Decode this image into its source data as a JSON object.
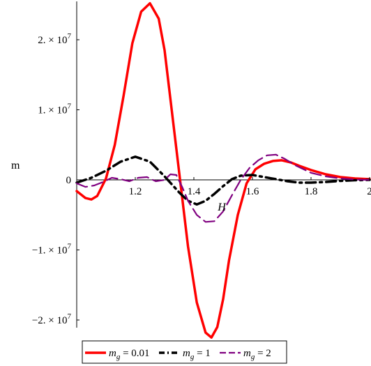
{
  "chart_data": {
    "type": "line",
    "xlabel": "H",
    "ylabel": "m",
    "xlim": [
      1.0,
      2.0
    ],
    "ylim": [
      -22500000,
      25000000
    ],
    "x_ticks": [
      {
        "value": 1.2,
        "label": "1.2"
      },
      {
        "value": 1.4,
        "label": "1.4"
      },
      {
        "value": 1.6,
        "label": "1.6"
      },
      {
        "value": 1.8,
        "label": "1.8"
      },
      {
        "value": 2.0,
        "label": "2"
      }
    ],
    "y_ticks": [
      {
        "value": 20000000,
        "label": "2. × 10",
        "exp": "7"
      },
      {
        "value": 10000000,
        "label": "1. × 10",
        "exp": "7"
      },
      {
        "value": 0,
        "label": "0",
        "exp": ""
      },
      {
        "value": -10000000,
        "label": "−1. × 10",
        "exp": "7"
      },
      {
        "value": -20000000,
        "label": "−2. × 10",
        "exp": "7"
      }
    ],
    "grid": false,
    "legend_position": "bottom",
    "series": [
      {
        "name_main": "m",
        "name_sub": "g",
        "name_value": " = 0.01",
        "color": "#ff0000",
        "style": "solid",
        "x": [
          1.0,
          1.03,
          1.05,
          1.07,
          1.1,
          1.13,
          1.16,
          1.19,
          1.22,
          1.25,
          1.28,
          1.3,
          1.32,
          1.35,
          1.38,
          1.41,
          1.44,
          1.46,
          1.48,
          1.5,
          1.52,
          1.55,
          1.58,
          1.61,
          1.64,
          1.67,
          1.7,
          1.73,
          1.76,
          1.8,
          1.85,
          1.9,
          1.95,
          2.0
        ],
        "y": [
          -1600000,
          -2600000,
          -2800000,
          -2300000,
          200000,
          5000000,
          12000000,
          19500000,
          24000000,
          25200000,
          23000000,
          18500000,
          11500000,
          1000000,
          -9500000,
          -17500000,
          -21800000,
          -22500000,
          -21000000,
          -17000000,
          -11500000,
          -5000000,
          -500000,
          1500000,
          2300000,
          2700000,
          2800000,
          2500000,
          2000000,
          1400000,
          800000,
          400000,
          200000,
          100000
        ]
      },
      {
        "name_main": "m",
        "name_sub": "g",
        "name_value": " = 1",
        "color": "#000000",
        "style": "dashdot",
        "x": [
          1.0,
          1.05,
          1.1,
          1.15,
          1.2,
          1.25,
          1.3,
          1.35,
          1.38,
          1.41,
          1.44,
          1.47,
          1.5,
          1.53,
          1.56,
          1.6,
          1.64,
          1.68,
          1.72,
          1.76,
          1.8,
          1.85,
          1.9,
          1.95,
          2.0
        ],
        "y": [
          -400000,
          300000,
          1300000,
          2600000,
          3300000,
          2600000,
          500000,
          -1800000,
          -3000000,
          -3500000,
          -3000000,
          -2000000,
          -900000,
          100000,
          600000,
          700000,
          400000,
          100000,
          -200000,
          -400000,
          -400000,
          -300000,
          -150000,
          -50000,
          0
        ]
      },
      {
        "name_main": "m",
        "name_sub": "g",
        "name_value": " = 2",
        "color": "#800080",
        "style": "dashed",
        "x": [
          1.0,
          1.03,
          1.06,
          1.09,
          1.12,
          1.15,
          1.18,
          1.21,
          1.24,
          1.27,
          1.3,
          1.32,
          1.34,
          1.36,
          1.38,
          1.41,
          1.44,
          1.47,
          1.5,
          1.53,
          1.56,
          1.59,
          1.62,
          1.65,
          1.68,
          1.71,
          1.75,
          1.8,
          1.85,
          1.9,
          1.95,
          2.0
        ],
        "y": [
          -500000,
          -1000000,
          -800000,
          -300000,
          300000,
          100000,
          -200000,
          300000,
          400000,
          -200000,
          0,
          800000,
          700000,
          -1000000,
          -3000000,
          -5000000,
          -6000000,
          -5900000,
          -4500000,
          -2200000,
          0,
          1700000,
          2800000,
          3500000,
          3600000,
          3000000,
          2000000,
          1000000,
          500000,
          200000,
          50000,
          0
        ]
      }
    ]
  }
}
